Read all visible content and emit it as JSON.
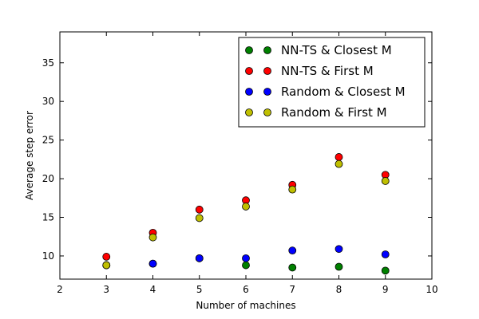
{
  "chart_data": {
    "type": "scatter",
    "xlabel": "Number of machines",
    "ylabel": "Average step error",
    "xlim": [
      2,
      10
    ],
    "ylim": [
      7,
      39
    ],
    "xticks": [
      2,
      3,
      4,
      5,
      6,
      7,
      8,
      9,
      10
    ],
    "yticks": [
      10,
      15,
      20,
      25,
      30,
      35
    ],
    "grid": false,
    "legend_position": "top-right",
    "x": [
      3,
      4,
      5,
      6,
      7,
      8,
      9
    ],
    "series": [
      {
        "name": "NN-TS & Closest M",
        "color": "#008000",
        "values": [
          8.8,
          9.0,
          9.7,
          8.8,
          8.5,
          8.6,
          8.1
        ]
      },
      {
        "name": "NN-TS & First M",
        "color": "#ff0000",
        "values": [
          9.9,
          13.0,
          16.0,
          17.2,
          19.2,
          22.8,
          20.5
        ]
      },
      {
        "name": "Random & Closest M",
        "color": "#0000ff",
        "values": [
          8.8,
          9.0,
          9.7,
          9.7,
          10.7,
          10.9,
          10.2
        ]
      },
      {
        "name": "Random & First M",
        "color": "#bfbf00",
        "values": [
          8.8,
          12.4,
          14.9,
          16.4,
          18.6,
          21.9,
          19.7
        ]
      }
    ]
  }
}
